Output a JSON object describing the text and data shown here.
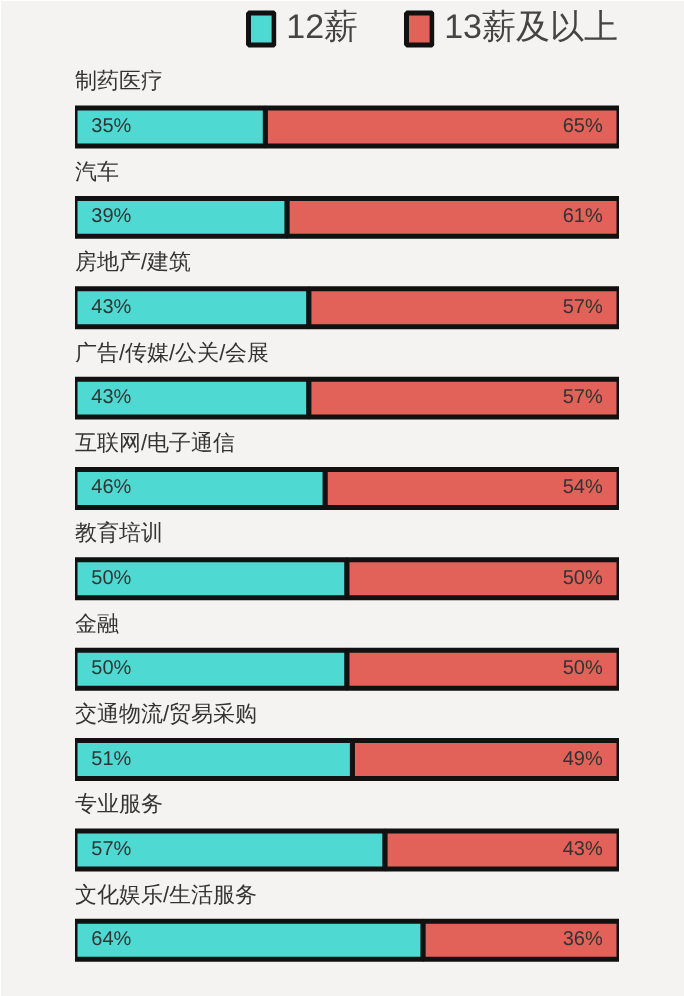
{
  "chart_data": {
    "type": "bar",
    "orientation": "horizontal",
    "stacked": true,
    "legend": "top right",
    "grid": false,
    "xlim": [
      0,
      100
    ],
    "categories": [
      "制药医疗",
      "汽车",
      "房地产/建筑",
      "广告/传媒/公关/会展",
      "互联网/电子通信",
      "教育培训",
      "金融",
      "交通物流/贸易采购",
      "专业服务",
      "文化娱乐/生活服务"
    ],
    "series": [
      {
        "name": "12薪",
        "color": "#4fd9d3",
        "values": [
          35,
          39,
          43,
          43,
          46,
          50,
          50,
          51,
          57,
          64
        ],
        "value_labels": [
          "35%",
          "39%",
          "43%",
          "43%",
          "46%",
          "50%",
          "50%",
          "51%",
          "57%",
          "64%"
        ]
      },
      {
        "name": "13薪及以上",
        "color": "#e2625a",
        "values": [
          65,
          61,
          57,
          57,
          54,
          50,
          50,
          49,
          43,
          36
        ],
        "value_labels": [
          "65%",
          "61%",
          "57%",
          "57%",
          "54%",
          "50%",
          "50%",
          "49%",
          "43%",
          "36%"
        ]
      }
    ]
  }
}
